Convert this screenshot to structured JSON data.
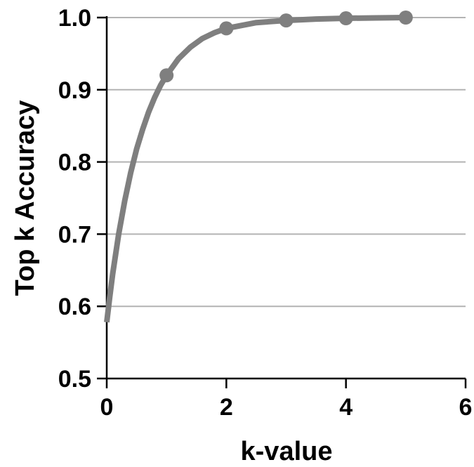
{
  "chart_data": {
    "type": "line",
    "title": "",
    "xlabel": "k-value",
    "ylabel": "Top k Accuracy",
    "xlim": [
      0,
      6
    ],
    "ylim": [
      0.5,
      1.0
    ],
    "x_ticks": [
      "0",
      "2",
      "4",
      "6"
    ],
    "y_ticks": [
      "0.5",
      "0.6",
      "0.7",
      "0.8",
      "0.9",
      "1.0"
    ],
    "x_tick_values": [
      0,
      2,
      4,
      6
    ],
    "y_tick_values": [
      0.5,
      0.6,
      0.7,
      0.8,
      0.9,
      1.0
    ],
    "grid": "horizontal",
    "legend": "none",
    "series": [
      {
        "x": [
          1,
          2,
          3,
          4,
          5
        ],
        "y": [
          0.92,
          0.985,
          0.996,
          0.999,
          1.0
        ]
      }
    ],
    "fitted_curve": {
      "x": [
        0,
        0.05,
        0.1,
        0.2,
        0.3,
        0.4,
        0.5,
        0.6,
        0.7,
        0.8,
        0.9,
        1.0,
        1.2,
        1.4,
        1.6,
        1.8,
        2.0,
        2.5,
        3.0,
        3.5,
        4.0,
        4.5,
        5.0
      ],
      "y": [
        0.578,
        0.613,
        0.645,
        0.7,
        0.746,
        0.785,
        0.818,
        0.845,
        0.869,
        0.889,
        0.906,
        0.92,
        0.943,
        0.959,
        0.971,
        0.979,
        0.985,
        0.993,
        0.996,
        0.998,
        0.999,
        0.9995,
        1.0
      ]
    },
    "colors": {
      "series": "#7f7f7f",
      "grid": "#b3b3b3",
      "axis": "#000000"
    }
  }
}
